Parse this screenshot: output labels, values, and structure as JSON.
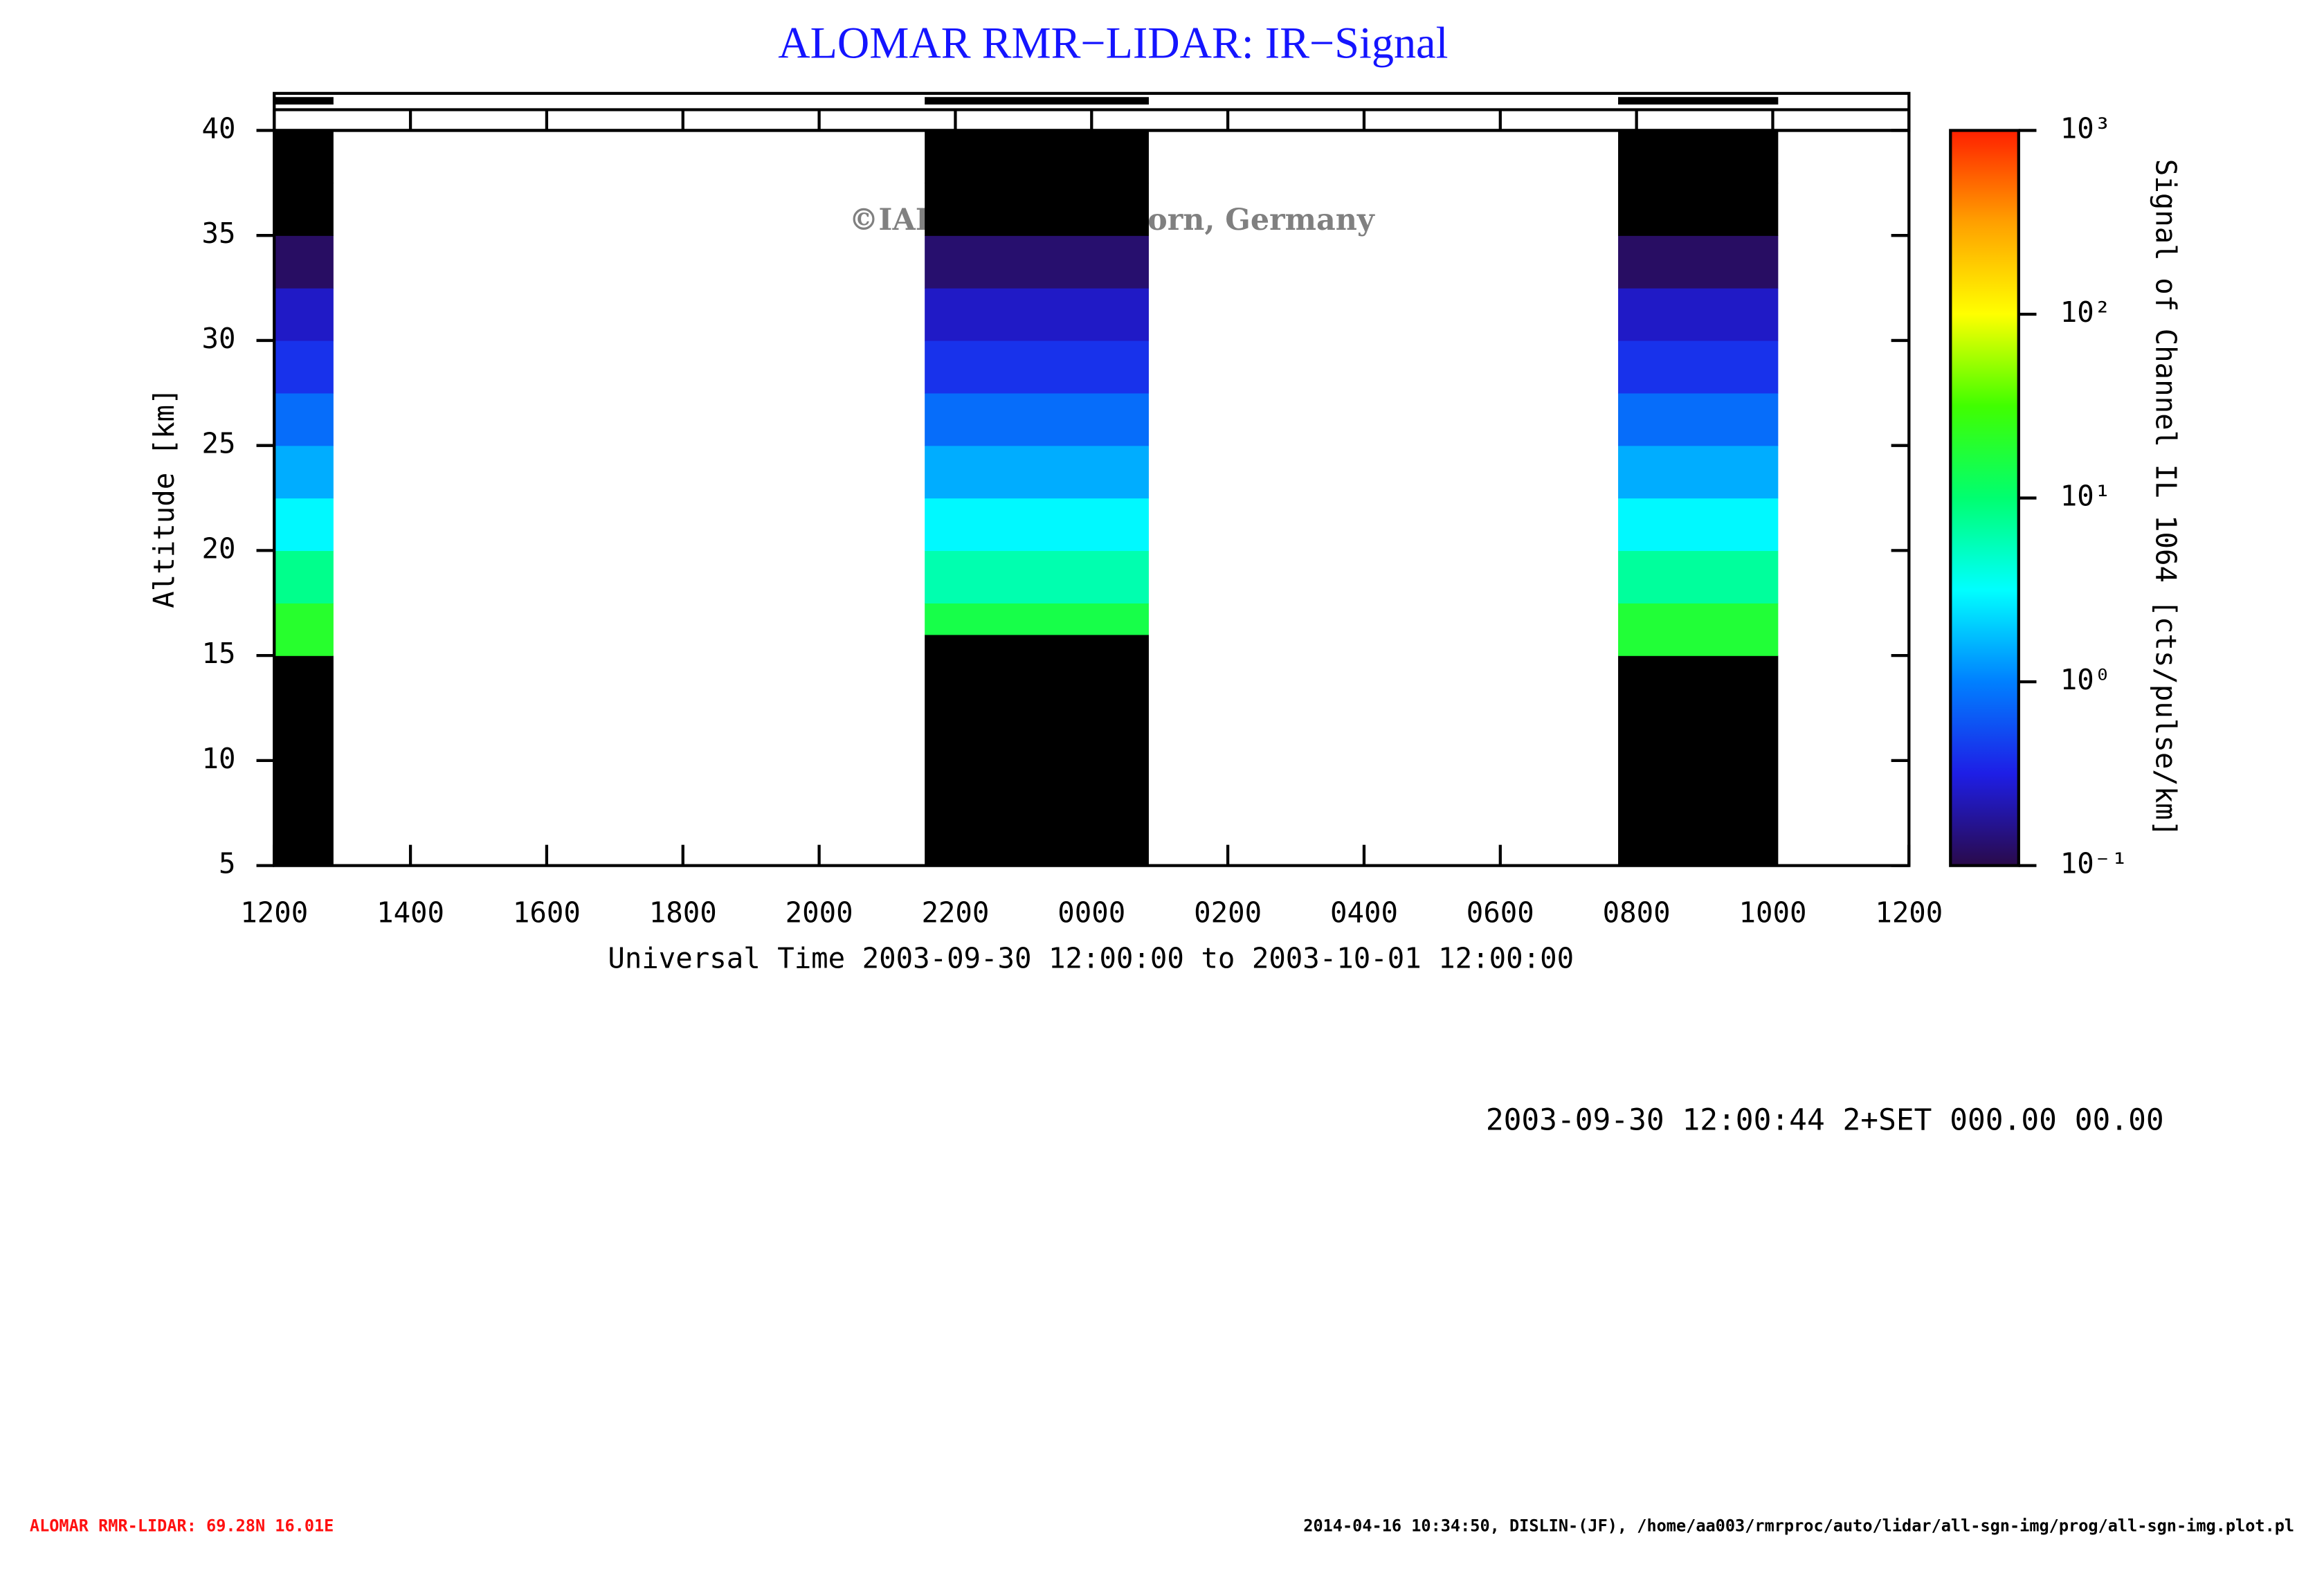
{
  "chart_data": {
    "type": "heatmap",
    "title": "ALOMAR RMR−LIDAR: IR−Signal",
    "xlabel": "Universal Time 2003-09-30 12:00:00 to 2003-10-01 12:00:00",
    "ylabel": "Altitude [km]",
    "colorbar_label": "Signal of Channel IL 1064 [cts/pulse/km]",
    "watermark": "©IAP Kuehlungsborn, Germany",
    "stamp": "2003-09-30 12:00:44 2+SET 000.00 00.00",
    "xlim": [
      12,
      36
    ],
    "xticks": [
      {
        "value": 12,
        "label": "1200"
      },
      {
        "value": 14,
        "label": "1400"
      },
      {
        "value": 16,
        "label": "1600"
      },
      {
        "value": 18,
        "label": "1800"
      },
      {
        "value": 20,
        "label": "2000"
      },
      {
        "value": 22,
        "label": "2200"
      },
      {
        "value": 24,
        "label": "0000"
      },
      {
        "value": 26,
        "label": "0200"
      },
      {
        "value": 28,
        "label": "0400"
      },
      {
        "value": 30,
        "label": "0600"
      },
      {
        "value": 32,
        "label": "0800"
      },
      {
        "value": 34,
        "label": "1000"
      },
      {
        "value": 36,
        "label": "1200"
      }
    ],
    "ylim": [
      5,
      40
    ],
    "yticks": [
      5,
      10,
      15,
      20,
      25,
      30,
      35,
      40
    ],
    "color_scale": "log",
    "clim": [
      0.1,
      1000
    ],
    "cticks": [
      {
        "value": 0.1,
        "label": "10⁻¹"
      },
      {
        "value": 1,
        "label": "10⁰"
      },
      {
        "value": 10,
        "label": "10¹"
      },
      {
        "value": 100,
        "label": "10²"
      },
      {
        "value": 1000,
        "label": "10³"
      }
    ],
    "colormap": [
      "#2a0a4a",
      "#1e1ee6",
      "#0080ff",
      "#00ffff",
      "#00ff70",
      "#40ff00",
      "#ffff00",
      "#ffa000",
      "#ff2000"
    ],
    "under_color": "#000000",
    "periods": [
      {
        "start": 12,
        "end": 12.87,
        "altitude_bins": [
          5,
          15,
          17.5,
          20,
          22.5,
          25,
          27.5,
          30,
          32.5,
          35,
          37.5,
          40
        ],
        "values": [
          0.01,
          20,
          8,
          3,
          1.5,
          0.8,
          0.4,
          0.25,
          0.12,
          0.05,
          0.03
        ]
      },
      {
        "start": 21.55,
        "end": 24.84,
        "altitude_bins": [
          5,
          16,
          17.5,
          20,
          22.5,
          25,
          27.5,
          30,
          32.5,
          35,
          37.5,
          40
        ],
        "values": [
          0.01,
          15,
          6,
          3,
          1.5,
          0.8,
          0.4,
          0.25,
          0.13,
          0.05,
          0.03
        ]
      },
      {
        "start": 31.73,
        "end": 34.08,
        "altitude_bins": [
          5,
          15,
          17.5,
          20,
          22.5,
          25,
          27.5,
          30,
          32.5,
          35,
          37.5,
          40
        ],
        "values": [
          0.01,
          18,
          7,
          3,
          1.5,
          0.8,
          0.4,
          0.25,
          0.12,
          0.05,
          0.03
        ]
      }
    ]
  },
  "footer": {
    "left": "ALOMAR RMR-LIDAR: 69.28N 16.01E",
    "right": "2014-04-16 10:34:50, DISLIN-(JF), /home/aa003/rmrproc/auto/lidar/all-sgn-img/prog/all-sgn-img.plot.pl"
  }
}
